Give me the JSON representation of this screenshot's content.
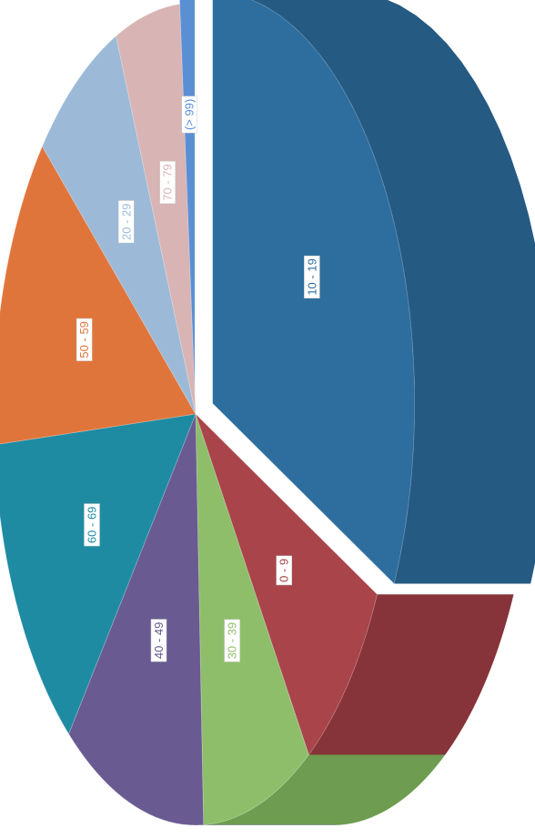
{
  "chart_data": {
    "type": "pie",
    "style": "3d-exploded",
    "orientation": "rotated-90",
    "categories": [
      "10 - 19",
      "0 - 9",
      "30 - 39",
      "40 - 49",
      "60 - 69",
      "50 - 59",
      "20 - 29",
      "70 - 79",
      "(> 99)"
    ],
    "values": [
      31.0,
      8.0,
      8.5,
      11.0,
      12.5,
      12.0,
      7.0,
      5.0,
      1.2
    ],
    "colors": [
      "#2E6E9E",
      "#A8444A",
      "#8EBE6A",
      "#6A5A92",
      "#1E8BA3",
      "#E0753C",
      "#9CBAD8",
      "#D8B4B4",
      "#5A8FD4"
    ],
    "side_colors": [
      "#255A82",
      "#863439",
      "#6E9C50",
      "#8878B8",
      "#3BA9C4",
      "#8C5040",
      "#6E7C88",
      "#7A8A92",
      "#4070B8"
    ],
    "exploded": [
      "10 - 19",
      "(> 99)"
    ],
    "title": "",
    "legend": "none"
  }
}
